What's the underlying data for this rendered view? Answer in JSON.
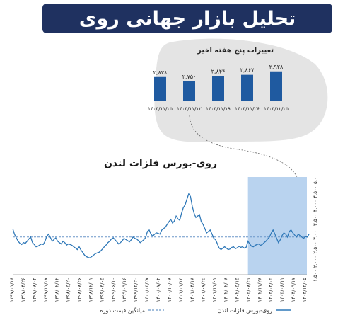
{
  "header": {
    "title": "تحلیل بازار جهانی روی"
  },
  "colors": {
    "banner": "#1f3160",
    "bar": "#1f5aa0",
    "series_line": "#2f78b8",
    "average_line": "#6a96c8",
    "highlight": "#b9d3ef",
    "inset_bg": "#e4e4e4"
  },
  "chart_data": [
    {
      "type": "bar",
      "title": "تغییرات پنج هفته اخیر",
      "categories": [
        "۱۴۰۳/۱۱/۰۵",
        "۱۴۰۳/۱۱/۱۲",
        "۱۴۰۳/۱۱/۱۹",
        "۱۴۰۳/۱۱/۲۶",
        "۱۴۰۳/۱۲/۰۵"
      ],
      "values": [
        2828,
        2750,
        2844,
        2867,
        2928
      ],
      "value_labels": [
        "۲,۸۲۸",
        "۲,۷۵۰",
        "۲,۸۴۴",
        "۲,۸۶۷",
        "۲,۹۲۸"
      ],
      "ylim": [
        2400,
        3000
      ]
    },
    {
      "type": "line",
      "title": "روی-بورس فلزات لندن",
      "ylim": [
        1500,
        5000
      ],
      "yticks": [
        1500,
        2000,
        2500,
        3000,
        3500,
        4000,
        4500,
        5000
      ],
      "ytick_labels": [
        "۱,۵۰۰",
        "۲,۰۰۰",
        "۲,۵۰۰",
        "۳,۰۰۰",
        "۳,۵۰۰",
        "۴,۰۰۰",
        "۴,۵۰۰",
        "۵,۰۰۰"
      ],
      "x_tick_labels": [
        "۱۳۹۷/۰۱/۱۶",
        "۱۳۹۷/۰۴/۲۶",
        "۱۳۹۷/۰۸/۰۲",
        "۱۳۹۷/۱۱/۰۷",
        "۱۳۹۸/۰۲/۱۲",
        "۱۳۹۸/۰۵/۲۰",
        "۱۳۹۸/۰۸/۲۶",
        "۱۳۹۸/۱۲/۰۱",
        "۱۳۹۹/۰۳/۰۵",
        "۱۳۹۹/۰۶/۱۰",
        "۱۳۹۹/۰۹/۱۶",
        "۱۳۹۹/۱۲/۲۰",
        "۱۴۰۰/۰۳/۲۷",
        "۱۴۰۰/۰۷/۰۲",
        "۱۴۰۰/۱۰/۰۸",
        "۱۴۰۱/۰۱/۱۳",
        "۱۴۰۱/۰۴/۱۸",
        "۱۴۰۱/۰۷/۲۵",
        "۱۴۰۱/۱۱/۰۱",
        "۱۴۰۲/۰۲/۰۸",
        "۱۴۰۲/۰۵/۱۵",
        "۱۴۰۲/۰۸/۲۱",
        "۱۴۰۲/۱۱/۲۸",
        "۱۴۰۳/۰۳/۰۵",
        "۱۴۰۳/۰۶/۱۱",
        "۱۴۰۳/۰۹/۱۷",
        "۱۴۰۳/۱۲/۰۵"
      ],
      "series": [
        {
          "name": "روی-بورس فلزات لندن",
          "values": [
            3150,
            2950,
            2820,
            2700,
            2620,
            2580,
            2650,
            2620,
            2700,
            2780,
            2850,
            2650,
            2580,
            2500,
            2520,
            2560,
            2600,
            2580,
            2700,
            2880,
            2950,
            2830,
            2700,
            2760,
            2820,
            2700,
            2650,
            2600,
            2700,
            2650,
            2560,
            2600,
            2580,
            2550,
            2500,
            2450,
            2400,
            2500,
            2380,
            2300,
            2200,
            2150,
            2120,
            2100,
            2150,
            2200,
            2250,
            2280,
            2300,
            2350,
            2420,
            2500,
            2560,
            2650,
            2700,
            2780,
            2820,
            2750,
            2680,
            2600,
            2650,
            2720,
            2800,
            2760,
            2720,
            2680,
            2750,
            2850,
            2800,
            2780,
            2720,
            2650,
            2700,
            2750,
            2830,
            3050,
            3100,
            2950,
            2880,
            2950,
            3000,
            2980,
            2950,
            3100,
            3150,
            3200,
            3300,
            3400,
            3480,
            3350,
            3420,
            3600,
            3500,
            3450,
            3700,
            3900,
            4000,
            4200,
            4400,
            4300,
            3950,
            3700,
            3550,
            3600,
            3650,
            3400,
            3300,
            3150,
            3000,
            3050,
            3100,
            2950,
            2800,
            2750,
            2600,
            2450,
            2400,
            2450,
            2500,
            2450,
            2400,
            2420,
            2480,
            2500,
            2430,
            2460,
            2520,
            2480,
            2500,
            2450,
            2480,
            2700,
            2600,
            2520,
            2500,
            2550,
            2580,
            2600,
            2550,
            2580,
            2650,
            2700,
            2780,
            2850,
            3000,
            3100,
            2950,
            2800,
            2650,
            2750,
            2900,
            3000,
            2950,
            2850,
            3050,
            3100,
            3000,
            2920,
            2850,
            2950,
            2900,
            2850,
            2800,
            2870,
            2850,
            2950
          ]
        },
        {
          "name": "میانگین قیمت دوره",
          "values": [
            2850,
            2850
          ]
        }
      ],
      "highlight_from_index": 131,
      "legend": [
        "روی-بورس فلزات لندن",
        "میانگین قیمت دوره"
      ]
    }
  ]
}
